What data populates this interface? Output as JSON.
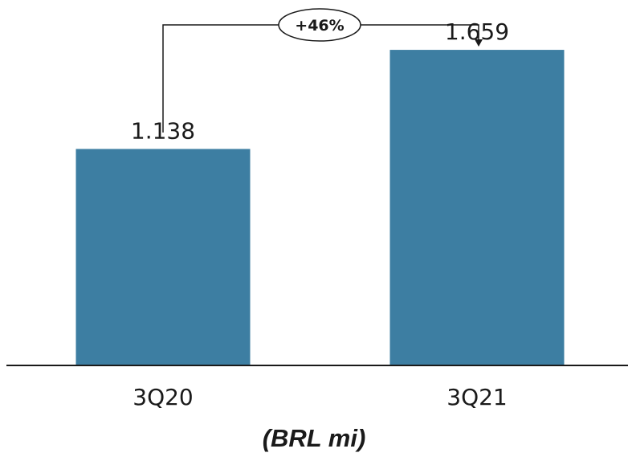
{
  "chart_data": {
    "type": "bar",
    "categories": [
      "3Q20",
      "3Q21"
    ],
    "values": [
      1138,
      1659
    ],
    "value_labels": [
      "1.138",
      "1.659"
    ],
    "unit_label": "(BRL mi)",
    "growth_label": "+46%",
    "ylim": [
      0,
      1900
    ],
    "grid": false,
    "legend": "none",
    "bar_color": "#3d7ea2"
  }
}
